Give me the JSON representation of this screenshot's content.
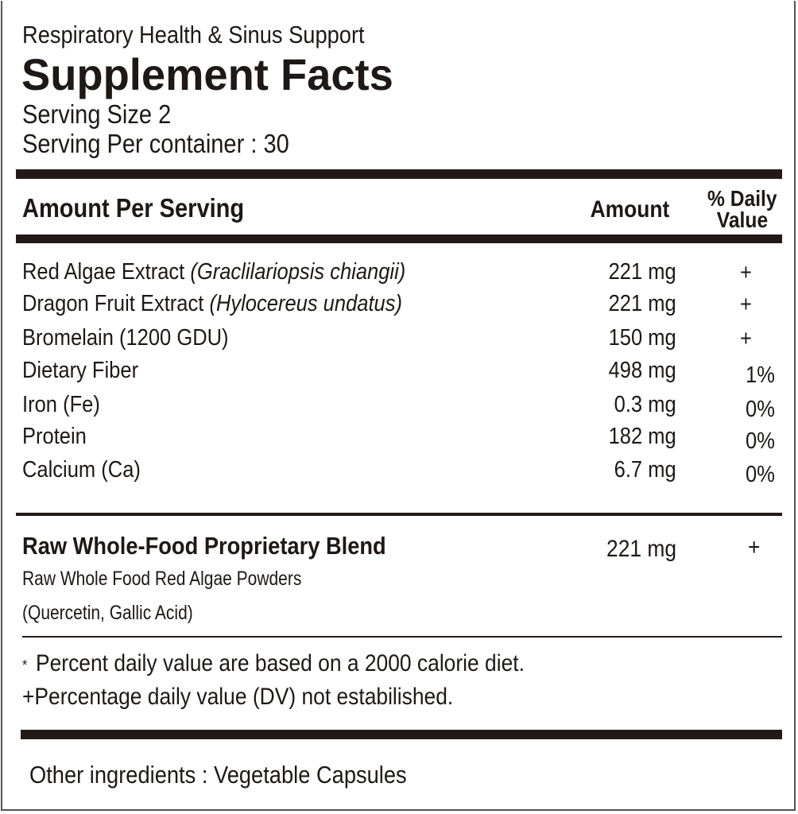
{
  "header": {
    "subtitle": "Respiratory Health & Sinus Support",
    "title": "Supplement Facts",
    "serving_size": "Serving Size 2",
    "servings_per_container": "Serving Per container : 30"
  },
  "columns": {
    "name": "Amount Per Serving",
    "amount": "Amount",
    "dv_line1": "% Daily",
    "dv_line2": "Value"
  },
  "rows": [
    {
      "name": "Red Algae Extract",
      "latin": "(Graclilariopsis chiangii)",
      "amount": "221 mg",
      "dv": "+"
    },
    {
      "name": "Dragon Fruit Extract",
      "latin": "(Hylocereus undatus)",
      "amount": "221 mg",
      "dv": "+"
    },
    {
      "name": "Bromelain (1200 GDU)",
      "latin": "",
      "amount": "150 mg",
      "dv": "+"
    },
    {
      "name": "Dietary Fiber",
      "latin": "",
      "amount": "498 mg",
      "dv": "1%"
    },
    {
      "name": "Iron (Fe)",
      "latin": "",
      "amount": "0.3 mg",
      "dv": "0%"
    },
    {
      "name": "Protein",
      "latin": "",
      "amount": "182 mg",
      "dv": "0%"
    },
    {
      "name": "Calcium (Ca)",
      "latin": "",
      "amount": "6.7 mg",
      "dv": "0%"
    }
  ],
  "blend": {
    "name": "Raw Whole-Food Proprietary Blend",
    "amount": "221 mg",
    "dv": "+",
    "line1": "Raw Whole Food Red Algae Powders",
    "line2": "(Quercetin, Gallic Acid)"
  },
  "footnotes": {
    "star": "*",
    "percent": "Percent daily value are based on a 2000 calorie diet.",
    "plus": "+Percentage daily value (DV) not estabilished."
  },
  "other_ingredients": "Other ingredients :  Vegetable Capsules"
}
